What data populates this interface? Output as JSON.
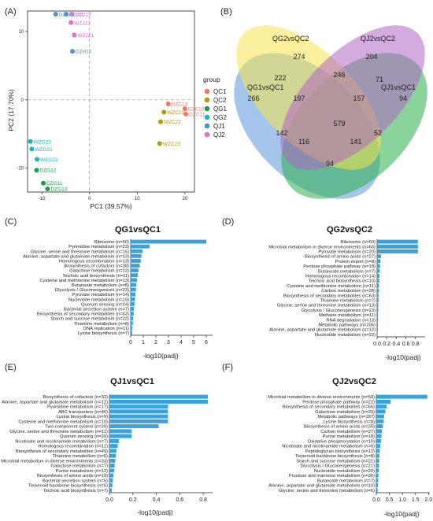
{
  "panels": {
    "A": "(A)",
    "B": "(B)",
    "C": "(C)",
    "D": "(D)",
    "E": "(E)",
    "F": "(F)"
  },
  "colors": {
    "QC1": "#f0776a",
    "QC2": "#b8970f",
    "QG1": "#1e9e4a",
    "QG2": "#1ab7c3",
    "QJ1": "#4e8fd6",
    "QJ2": "#e46fc8",
    "bar": "#3aa2dd"
  },
  "chart_data": [
    {
      "type": "scatter",
      "xlabel": "PC1 (39.57%)",
      "ylabel": "PC2 (17.70%)",
      "xlim": [
        -13,
        22
      ],
      "ylim": [
        -13.5,
        13
      ],
      "xticks": [
        -10,
        0,
        10,
        20
      ],
      "yticks": [
        -10,
        0,
        10
      ],
      "legend_title": "group",
      "legend": [
        "QC1",
        "QC2",
        "QG1",
        "QG2",
        "QJ1",
        "QJ2"
      ],
      "series": [
        {
          "name": "QC1",
          "points": [
            {
              "label": "DZC13",
              "x": 16.5,
              "y": -0.6
            },
            {
              "label": "DZC12",
              "x": 20.0,
              "y": -1.3
            },
            {
              "label": "DZC11",
              "x": 20.2,
              "y": -2.1
            }
          ]
        },
        {
          "name": "QC2",
          "points": [
            {
              "label": "WZC21",
              "x": 15.6,
              "y": -1.8
            },
            {
              "label": "WZC22",
              "x": 14.9,
              "y": -3.2
            },
            {
              "label": "WZC23",
              "x": 14.7,
              "y": -6.4
            }
          ]
        },
        {
          "name": "QG1",
          "points": [
            {
              "label": "DZG12",
              "x": -11.1,
              "y": -10.3
            },
            {
              "label": "DZG11",
              "x": -9.7,
              "y": -12.2
            },
            {
              "label": "DZG13",
              "x": -8.8,
              "y": -13.3
            }
          ]
        },
        {
          "name": "QG2",
          "points": [
            {
              "label": "WZG23",
              "x": -12.4,
              "y": -6.1
            },
            {
              "label": "WZG21",
              "x": -12.1,
              "y": -7.2
            },
            {
              "label": "WZG22",
              "x": -11.0,
              "y": -8.7
            }
          ]
        },
        {
          "name": "QJ1",
          "points": [
            {
              "label": "DZJ13",
              "x": -7.1,
              "y": 17.8
            },
            {
              "label": "DZJ11",
              "x": -4.9,
              "y": 16.5
            },
            {
              "label": "DZH12",
              "x": -3.6,
              "y": 7.1
            }
          ]
        },
        {
          "name": "QJ2",
          "points": [
            {
              "label": "WZJ22",
              "x": -3.7,
              "y": 13.9
            },
            {
              "label": "WZJ23",
              "x": -3.9,
              "y": 11.3
            },
            {
              "label": "WZJ21",
              "x": -3.2,
              "y": 9.5
            }
          ]
        }
      ]
    },
    {
      "type": "venn",
      "sets": [
        "QG1vsQC1",
        "QG2vsQC2",
        "QJ2vsQC2",
        "QJ1vsQC1"
      ],
      "regions": [
        {
          "value": "266"
        },
        {
          "value": "274"
        },
        {
          "value": "204"
        },
        {
          "value": "94"
        },
        {
          "value": "222"
        },
        {
          "value": "246"
        },
        {
          "value": "71"
        },
        {
          "value": "197"
        },
        {
          "value": "157"
        },
        {
          "value": "142"
        },
        {
          "value": "579"
        },
        {
          "value": "52"
        },
        {
          "value": "116"
        },
        {
          "value": "141"
        },
        {
          "value": "94"
        }
      ]
    },
    {
      "type": "bar",
      "orientation": "horizontal",
      "title": "QG1vsQC1",
      "xlabel": "-log10(padj)",
      "xlim": [
        0,
        6.5
      ],
      "xticks": [
        "0",
        "1",
        "2",
        "3",
        "4",
        "5",
        "6"
      ],
      "categories": [
        "Ribosome (n=60)",
        "Pyrimidine metabolism (n=23)",
        "Glycine, serine and threonine metabolism (n=15)",
        "Alanine, aspartate and glutamate metabolism (n=13)",
        "Homologous recombination (n=13)",
        "Biosynthesis of cofactors (n=38)",
        "Galactose metabolism (n=12)",
        "Teichoic acid biosynthesis (n=11)",
        "Cysteine and methionine metabolism (n=13)",
        "Butanoate metabolism (n=8)",
        "Glycolysis / Gluconeogenesis (n=23)",
        "Pyruvate metabolism (n=14)",
        "Nucleotide metabolism (n=19)",
        "Quorum sensing (n=24)",
        "Bacterial secretion system (n=7)",
        "Biosynthesis of secondary metabolites (n=63)",
        "Starch and sucrose metabolism (n=22)",
        "Thiamine metabolism (n=8)",
        "DNA replication (n=11)",
        "Lysine biosynthesis (n=7)"
      ],
      "values": [
        6.0,
        1.5,
        0.95,
        0.85,
        0.8,
        0.72,
        0.62,
        0.56,
        0.5,
        0.45,
        0.42,
        0.38,
        0.34,
        0.3,
        0.26,
        0.24,
        0.2,
        0.17,
        0.14,
        0.12
      ]
    },
    {
      "type": "bar",
      "orientation": "horizontal",
      "title": "QG2vsQC2",
      "xlabel": "-log10(padj)",
      "xlim": [
        0,
        1.0
      ],
      "xticks": [
        "0.0",
        "0.2",
        "0.4",
        "0.6",
        "0.8"
      ],
      "categories": [
        "Ribosome (n=50)",
        "Microbial metabolism in diverse environments (n=60)",
        "Pyruvate metabolism (n=20)",
        "Biosynthesis of amino acids (n=27)",
        "Protein export (n=8)",
        "Pentose phosphate pathway (n=19)",
        "Butanoate metabolism (n=7)",
        "Homologous recombination (n=14)",
        "Teichoic acid biosynthesis (n=10)",
        "Cysteine and methionine metabolism (n=11)",
        "Carbon metabolism (n=28)",
        "Biosynthesis of secondary metabolites (n=63)",
        "Thiamine metabolism (n=7)",
        "Glycine, serine and threonine metabolism (n=13)",
        "Glycolysis / Gluconeogenesis (n=23)",
        "Methane metabolism (n=11)",
        "RNA degradation (n=13)",
        "Metabolic pathways (n=206)",
        "Alanine, aspartate and glutamate metabolism (n=12)",
        "Nucleotide metabolism (n=22)"
      ],
      "values": [
        0.85,
        0.85,
        0.85,
        0.08,
        0.07,
        0.06,
        0.055,
        0.05,
        0.045,
        0.04,
        0.035,
        0.03,
        0.03,
        0.025,
        0.025,
        0.02,
        0.02,
        0.015,
        0.015,
        0.01
      ]
    },
    {
      "type": "bar",
      "orientation": "horizontal",
      "title": "QJ1vsQC1",
      "xlabel": "-log10(padj)",
      "xlim": [
        0,
        0.88
      ],
      "xticks": [
        "0.0",
        "0.2",
        "0.4",
        "0.6",
        "0.8"
      ],
      "categories": [
        "Biosynthesis of cofactors (n=32)",
        "Alanine, aspartate and glutamate metabolism (n=12)",
        "Pyrimidine metabolism (n=17)",
        "ABC transporters (n=46)",
        "Lysine biosynthesis (n=9)",
        "Cysteine and methionine metabolism (n=10)",
        "Two-component system (n=20)",
        "Glycine, serine and threonine metabolism (n=11)",
        "Quorum sensing (n=20)",
        "Nicotinate and nicotinamide metabolism (n=7)",
        "Homologous recombination (n=11)",
        "Biosynthesis of secondary metabolites (n=49)",
        "Thiamine metabolism (n=6)",
        "Microbial metabolism in diverse environments (n=33)",
        "Galactose metabolism (n=7)",
        "Purine metabolism (n=12)",
        "Biosynthesis of amino acids (n=19)",
        "Bacterial secretion system (n=5)",
        "Terpenoid backbone biosynthesis (n=5)",
        "Teichoic acid biosynthesis (n=7)"
      ],
      "values": [
        0.84,
        0.84,
        0.5,
        0.5,
        0.5,
        0.5,
        0.42,
        0.19,
        0.19,
        0.08,
        0.07,
        0.06,
        0.055,
        0.05,
        0.045,
        0.04,
        0.035,
        0.03,
        0.025,
        0.02
      ]
    },
    {
      "type": "bar",
      "orientation": "horizontal",
      "title": "QJ2vsQC2",
      "xlabel": "-log10(padj)",
      "xlim": [
        0,
        2.05
      ],
      "xticks": [
        "0.0",
        "0.5",
        "1.0",
        "1.5",
        "2.0"
      ],
      "categories": [
        "Microbial metabolism in diverse environments (n=59)",
        "Pentose phosphate pathway (n=22)",
        "Biosynthesis of secondary metabolites (n=66)",
        "Galactose metabolism (n=20)",
        "Metabolic pathways (n=187)",
        "Lysine biosynthesis (n=8)",
        "Biosynthesis of amino acids (n=25)",
        "Carbon metabolism (n=27)",
        "Purine metabolism (n=18)",
        "Oxidative phosphorylation (n=10)",
        "Nicotinate and nicotinamide metabolism (n=6)",
        "Peptidoglycan biosynthesis (n=12)",
        "Terpenoid backbone biosynthesis (n=8)",
        "Starch and sucrose metabolism (n=21)",
        "Glycolysis / Gluconeogenesis (n=21)",
        "Nucleotide metabolism (n=20)",
        "Fructose and mannose metabolism (n=26)",
        "Butanoate metabolism (n=7)",
        "Alanine, aspartate and glutamate metabolism (n=10)",
        "Glycine, serine and threonine metabolism (n=6)"
      ],
      "values": [
        1.95,
        0.55,
        0.4,
        0.35,
        0.3,
        0.28,
        0.25,
        0.22,
        0.2,
        0.18,
        0.15,
        0.13,
        0.12,
        0.11,
        0.1,
        0.09,
        0.08,
        0.07,
        0.06,
        0.05
      ]
    }
  ]
}
